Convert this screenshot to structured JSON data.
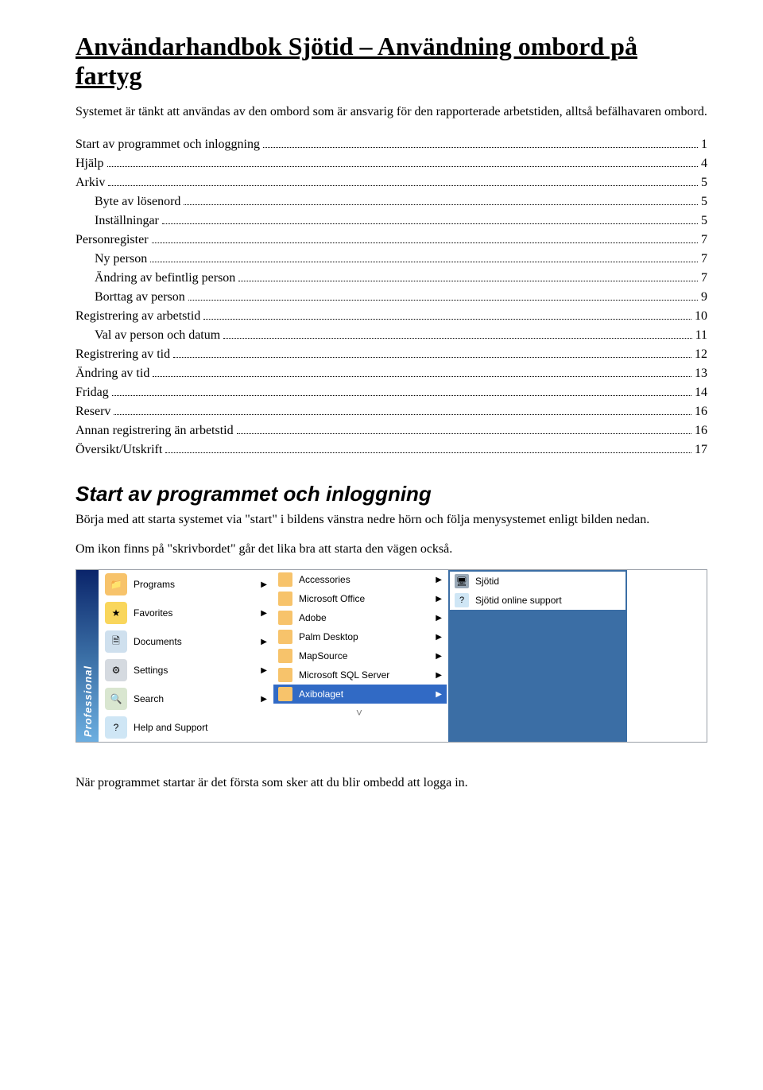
{
  "title": "Användarhandbok Sjötid – Användning ombord på fartyg",
  "intro": "Systemet är tänkt att användas av den ombord som är ansvarig för den rapporterade arbetstiden, alltså befälhavaren ombord.",
  "toc": [
    {
      "label": "Start av programmet och inloggning",
      "page": "1",
      "indent": 0
    },
    {
      "label": "Hjälp",
      "page": "4",
      "indent": 0
    },
    {
      "label": "Arkiv",
      "page": "5",
      "indent": 0
    },
    {
      "label": "Byte av lösenord",
      "page": "5",
      "indent": 1
    },
    {
      "label": "Inställningar",
      "page": "5",
      "indent": 1
    },
    {
      "label": "Personregister",
      "page": "7",
      "indent": 0
    },
    {
      "label": "Ny person",
      "page": "7",
      "indent": 1
    },
    {
      "label": "Ändring av befintlig person",
      "page": "7",
      "indent": 1
    },
    {
      "label": "Borttag av person",
      "page": "9",
      "indent": 1
    },
    {
      "label": "Registrering av arbetstid",
      "page": "10",
      "indent": 0
    },
    {
      "label": "Val av person och datum",
      "page": "11",
      "indent": 1
    },
    {
      "label": "Registrering av tid",
      "page": "12",
      "indent": 0
    },
    {
      "label": "Ändring av tid",
      "page": "13",
      "indent": 0
    },
    {
      "label": "Fridag",
      "page": "14",
      "indent": 0
    },
    {
      "label": "Reserv",
      "page": "16",
      "indent": 0
    },
    {
      "label": "Annan registrering än arbetstid",
      "page": "16",
      "indent": 0
    },
    {
      "label": "Översikt/Utskrift",
      "page": "17",
      "indent": 0
    }
  ],
  "section_heading": "Start av programmet och inloggning",
  "section_p1": "Börja med att starta systemet via \"start\" i bildens vänstra nedre hörn och följa menysystemet enligt bilden nedan.",
  "section_p2": "Om ikon finns på \"skrivbordet\" går det lika bra att starta den vägen också.",
  "xp_label": "Professional",
  "start_menu": {
    "left": [
      {
        "label": "Programs",
        "icon_bg": "#f7c36b",
        "icon_glyph": "📁",
        "arrow": true,
        "sel": false
      },
      {
        "label": "Favorites",
        "icon_bg": "#f9d65c",
        "icon_glyph": "★",
        "arrow": true,
        "sel": false
      },
      {
        "label": "Documents",
        "icon_bg": "#cfe0ee",
        "icon_glyph": "🗎",
        "arrow": true,
        "sel": false
      },
      {
        "label": "Settings",
        "icon_bg": "#d5dae0",
        "icon_glyph": "⚙",
        "arrow": true,
        "sel": false
      },
      {
        "label": "Search",
        "icon_bg": "#d9e6d0",
        "icon_glyph": "🔍",
        "arrow": true,
        "sel": false
      },
      {
        "label": "Help and Support",
        "icon_bg": "#cfe6f5",
        "icon_glyph": "?",
        "arrow": false,
        "sel": false
      }
    ],
    "mid": [
      {
        "label": "Accessories",
        "icon_bg": "#f7c36b",
        "arrow": true,
        "sel": false
      },
      {
        "label": "Microsoft Office",
        "icon_bg": "#f7c36b",
        "arrow": true,
        "sel": false
      },
      {
        "label": "Adobe",
        "icon_bg": "#f7c36b",
        "arrow": true,
        "sel": false
      },
      {
        "label": "Palm Desktop",
        "icon_bg": "#f7c36b",
        "arrow": true,
        "sel": false
      },
      {
        "label": "MapSource",
        "icon_bg": "#f7c36b",
        "arrow": true,
        "sel": false
      },
      {
        "label": "Microsoft SQL Server",
        "icon_bg": "#f7c36b",
        "arrow": true,
        "sel": false
      },
      {
        "label": "Axibolaget",
        "icon_bg": "#f7c36b",
        "arrow": true,
        "sel": true
      },
      {
        "label": "expand",
        "expand": true
      }
    ],
    "right": [
      {
        "label": "Sjötid",
        "icon_bg": "#9aa9b7",
        "icon_glyph": "🖥",
        "sel": false
      },
      {
        "label": "Sjötid online support",
        "icon_bg": "#cfe6f5",
        "icon_glyph": "?",
        "sel": false
      }
    ]
  },
  "closing": "När programmet startar är det första som sker att du blir ombedd att logga in."
}
